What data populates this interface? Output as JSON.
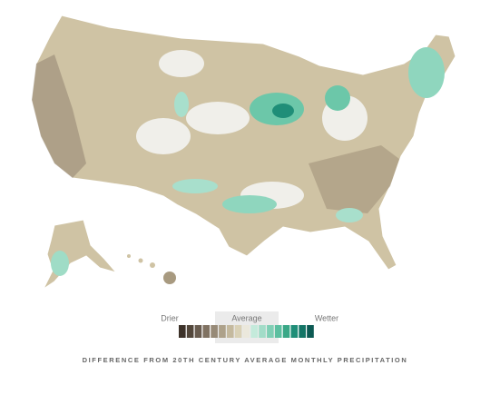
{
  "legend": {
    "low_label": "Drier",
    "mid_label": "Average",
    "high_label": "Wetter",
    "colors": [
      "#3d3229",
      "#53473b",
      "#695c4f",
      "#807262",
      "#978a77",
      "#ada18a",
      "#c4b99e",
      "#d9d1b6",
      "#ebe8dc",
      "#c4eadb",
      "#a2dcc8",
      "#80cfb5",
      "#5cbfa0",
      "#3aa887",
      "#1f8e78",
      "#137566",
      "#0c5a53"
    ]
  },
  "caption": "DIFFERENCE FROM 20TH CENTURY AVERAGE MONTHLY PRECIPITATION"
}
